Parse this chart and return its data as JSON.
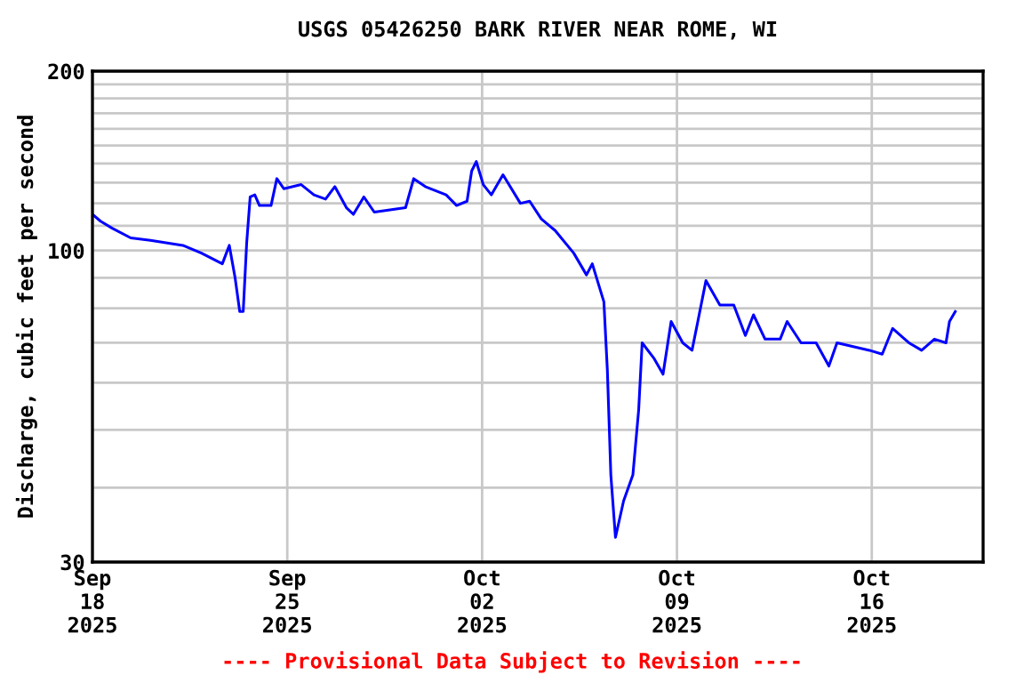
{
  "chart_data": {
    "type": "line",
    "title": "USGS 05426250 BARK RIVER NEAR ROME, WI",
    "ylabel": "Discharge, cubic feet per second",
    "annotations": [
      "---- Provisional Data Subject to Revision ----"
    ],
    "x": [
      "2025-09-18T00:00",
      "2025-09-18T07:00",
      "2025-09-18T17:00",
      "2025-09-19T09:00",
      "2025-09-20T02:00",
      "2025-09-21T06:00",
      "2025-09-21T22:00",
      "2025-09-22T16:00",
      "2025-09-22T22:00",
      "2025-09-23T03:00",
      "2025-09-23T07:00",
      "2025-09-23T10:00",
      "2025-09-23T13:00",
      "2025-09-23T16:00",
      "2025-09-23T20:00",
      "2025-09-24T00:00",
      "2025-09-24T10:00",
      "2025-09-24T15:00",
      "2025-09-24T21:00",
      "2025-09-25T12:00",
      "2025-09-25T23:00",
      "2025-09-26T09:00",
      "2025-09-26T17:00",
      "2025-09-27T03:00",
      "2025-09-27T09:00",
      "2025-09-27T18:00",
      "2025-09-28T03:00",
      "2025-09-29T06:00",
      "2025-09-29T13:00",
      "2025-09-29T23:00",
      "2025-09-30T17:00",
      "2025-10-01T02:00",
      "2025-10-01T11:00",
      "2025-10-01T15:00",
      "2025-10-01T19:00",
      "2025-10-02T01:00",
      "2025-10-02T08:00",
      "2025-10-02T18:00",
      "2025-10-03T09:00",
      "2025-10-03T17:00",
      "2025-10-04T03:00",
      "2025-10-04T15:00",
      "2025-10-05T07:00",
      "2025-10-05T18:00",
      "2025-10-05T23:00",
      "2025-10-06T09:00",
      "2025-10-06T12:00",
      "2025-10-06T15:00",
      "2025-10-06T19:00",
      "2025-10-07T02:00",
      "2025-10-07T10:00",
      "2025-10-07T15:00",
      "2025-10-07T18:00",
      "2025-10-08T04:00",
      "2025-10-08T12:00",
      "2025-10-08T19:00",
      "2025-10-09T05:00",
      "2025-10-09T13:00",
      "2025-10-09T18:00",
      "2025-10-10T01:00",
      "2025-10-10T13:00",
      "2025-10-11T01:00",
      "2025-10-11T11:00",
      "2025-10-11T18:00",
      "2025-10-12T04:00",
      "2025-10-12T17:00",
      "2025-10-12T23:00",
      "2025-10-13T11:00",
      "2025-10-14T00:00",
      "2025-10-14T11:00",
      "2025-10-14T18:00",
      "2025-10-15T22:00",
      "2025-10-16T09:00",
      "2025-10-16T18:00",
      "2025-10-17T08:00",
      "2025-10-17T19:00",
      "2025-10-18T06:00",
      "2025-10-18T16:00",
      "2025-10-18T19:00",
      "2025-10-19T00:00"
    ],
    "series": [
      {
        "color": "#0000ff",
        "values": [
          115,
          112,
          109,
          105,
          104,
          102,
          99,
          95,
          102,
          90,
          79,
          79,
          103,
          123,
          124,
          119,
          119,
          132,
          127,
          129,
          124,
          122,
          128,
          118,
          115,
          123,
          116,
          118,
          132,
          128,
          124,
          119,
          121,
          136,
          141,
          129,
          124,
          134,
          120,
          121,
          113,
          108,
          99,
          91,
          95,
          82,
          63,
          42,
          33,
          38,
          42,
          54,
          70,
          66,
          62,
          76,
          70,
          68,
          76,
          89,
          81,
          81,
          72,
          78,
          71,
          71,
          76,
          70,
          70,
          64,
          70,
          68,
          67,
          74,
          70,
          68,
          71,
          70,
          76,
          79
        ]
      }
    ],
    "log": "y",
    "ylim": [
      30,
      200
    ],
    "yticks": [
      30,
      {
        "value": 40,
        "label": null
      },
      {
        "value": 50,
        "label": null
      },
      {
        "value": 60,
        "label": null
      },
      {
        "value": 70,
        "label": null
      },
      {
        "value": 80,
        "label": null
      },
      {
        "value": 90,
        "label": null
      },
      100,
      {
        "value": 110,
        "label": null
      },
      {
        "value": 120,
        "label": null
      },
      {
        "value": 130,
        "label": null
      },
      {
        "value": 140,
        "label": null
      },
      {
        "value": 150,
        "label": null
      },
      {
        "value": 160,
        "label": null
      },
      {
        "value": 170,
        "label": null
      },
      {
        "value": 180,
        "label": null
      },
      {
        "value": 190,
        "label": null
      },
      200
    ],
    "xlim": [
      "2025-09-18",
      "2025-10-20"
    ],
    "xticks": [
      {
        "value": "2025-09-18",
        "label": "Sep\n18\n2025"
      },
      {
        "value": "2025-09-25",
        "label": "Sep\n25\n2025"
      },
      {
        "value": "2025-10-02",
        "label": "Oct\n02\n2025"
      },
      {
        "value": "2025-10-09",
        "label": "Oct\n09\n2025"
      },
      {
        "value": "2025-10-16",
        "label": "Oct\n16\n2025"
      }
    ],
    "grid": true,
    "line_style": "solid",
    "marker": "none",
    "legend": false
  }
}
